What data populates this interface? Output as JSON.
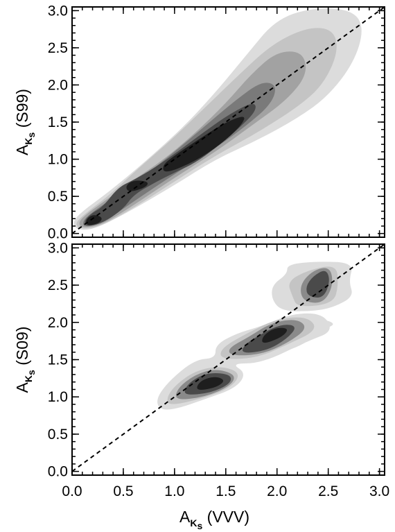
{
  "chart_data": [
    {
      "type": "contour",
      "panel": "top",
      "ylabel": {
        "main": "A",
        "subscript": "K",
        "sub_marker": "s",
        "rest": " (S99)"
      },
      "xlim": [
        0.0,
        3.05
      ],
      "ylim": [
        -0.05,
        3.05
      ],
      "xticks": [
        0.0,
        0.5,
        1.0,
        1.5,
        2.0,
        2.5,
        3.0
      ],
      "yticks": [
        0.0,
        0.5,
        1.0,
        1.5,
        2.0,
        2.5,
        3.0
      ],
      "ytick_labels": [
        "0.0",
        "0.5",
        "1.0",
        "1.5",
        "2.0",
        "2.5",
        "3.0"
      ],
      "reference_line": {
        "style": "dashed",
        "relation": "y = x"
      },
      "density_levels": [
        {
          "shade": "#dcdcdc",
          "points": [
            [
              0.05,
              0.05
            ],
            [
              0.2,
              0.05
            ],
            [
              0.5,
              0.25
            ],
            [
              1.0,
              0.65
            ],
            [
              1.4,
              1.0
            ],
            [
              1.8,
              1.25
            ],
            [
              2.2,
              1.55
            ],
            [
              2.5,
              1.85
            ],
            [
              2.75,
              2.3
            ],
            [
              2.85,
              2.75
            ],
            [
              2.75,
              3.0
            ],
            [
              2.4,
              3.05
            ],
            [
              2.0,
              2.9
            ],
            [
              1.7,
              2.4
            ],
            [
              1.4,
              1.9
            ],
            [
              1.1,
              1.45
            ],
            [
              0.7,
              0.95
            ],
            [
              0.35,
              0.55
            ],
            [
              0.1,
              0.3
            ],
            [
              0.0,
              0.15
            ]
          ]
        },
        {
          "shade": "#c4c4c4",
          "points": [
            [
              0.07,
              0.06
            ],
            [
              0.25,
              0.08
            ],
            [
              0.55,
              0.3
            ],
            [
              1.0,
              0.7
            ],
            [
              1.4,
              1.05
            ],
            [
              1.8,
              1.35
            ],
            [
              2.2,
              1.7
            ],
            [
              2.45,
              2.0
            ],
            [
              2.6,
              2.45
            ],
            [
              2.55,
              2.75
            ],
            [
              2.3,
              2.78
            ],
            [
              1.95,
              2.55
            ],
            [
              1.6,
              2.1
            ],
            [
              1.3,
              1.7
            ],
            [
              1.0,
              1.3
            ],
            [
              0.65,
              0.88
            ],
            [
              0.35,
              0.5
            ],
            [
              0.12,
              0.26
            ],
            [
              0.03,
              0.14
            ]
          ]
        },
        {
          "shade": "#a2a2a2",
          "points": [
            [
              0.1,
              0.07
            ],
            [
              0.3,
              0.12
            ],
            [
              0.6,
              0.38
            ],
            [
              1.0,
              0.75
            ],
            [
              1.4,
              1.1
            ],
            [
              1.75,
              1.45
            ],
            [
              2.1,
              1.8
            ],
            [
              2.3,
              2.15
            ],
            [
              2.25,
              2.45
            ],
            [
              2.0,
              2.45
            ],
            [
              1.75,
              2.15
            ],
            [
              1.5,
              1.75
            ],
            [
              1.2,
              1.35
            ],
            [
              0.9,
              1.0
            ],
            [
              0.6,
              0.72
            ],
            [
              0.3,
              0.42
            ],
            [
              0.12,
              0.24
            ],
            [
              0.06,
              0.14
            ]
          ]
        },
        {
          "shade": "#7a7a7a",
          "points": [
            [
              0.12,
              0.08
            ],
            [
              0.3,
              0.14
            ],
            [
              0.6,
              0.43
            ],
            [
              1.0,
              0.8
            ],
            [
              1.4,
              1.15
            ],
            [
              1.7,
              1.45
            ],
            [
              1.95,
              1.75
            ],
            [
              2.0,
              2.0
            ],
            [
              1.85,
              2.05
            ],
            [
              1.6,
              1.8
            ],
            [
              1.3,
              1.45
            ],
            [
              1.0,
              1.1
            ],
            [
              0.7,
              0.77
            ],
            [
              0.4,
              0.48
            ],
            [
              0.18,
              0.27
            ],
            [
              0.1,
              0.16
            ]
          ]
        },
        {
          "shade": "#4a4a4a",
          "points": [
            [
              0.13,
              0.09
            ],
            [
              0.3,
              0.14
            ],
            [
              0.5,
              0.33
            ],
            [
              0.6,
              0.52
            ],
            [
              0.8,
              0.68
            ],
            [
              1.0,
              0.82
            ],
            [
              1.2,
              0.95
            ],
            [
              1.4,
              1.15
            ],
            [
              1.6,
              1.38
            ],
            [
              1.8,
              1.65
            ],
            [
              1.78,
              1.78
            ],
            [
              1.55,
              1.62
            ],
            [
              1.3,
              1.38
            ],
            [
              1.05,
              1.12
            ],
            [
              0.8,
              0.88
            ],
            [
              0.6,
              0.72
            ],
            [
              0.45,
              0.62
            ],
            [
              0.3,
              0.36
            ],
            [
              0.2,
              0.28
            ],
            [
              0.12,
              0.18
            ]
          ]
        },
        {
          "shade": "#1e1e1e",
          "points": [
            [
              0.15,
              0.1
            ],
            [
              0.27,
              0.14
            ],
            [
              0.3,
              0.22
            ],
            [
              0.2,
              0.26
            ],
            [
              0.13,
              0.18
            ]
          ]
        },
        {
          "shade": "#1e1e1e",
          "points": [
            [
              0.55,
              0.55
            ],
            [
              0.72,
              0.62
            ],
            [
              0.75,
              0.7
            ],
            [
              0.6,
              0.72
            ],
            [
              0.52,
              0.64
            ]
          ]
        },
        {
          "shade": "#1e1e1e",
          "points": [
            [
              0.9,
              0.8
            ],
            [
              1.2,
              0.97
            ],
            [
              1.45,
              1.2
            ],
            [
              1.65,
              1.45
            ],
            [
              1.7,
              1.6
            ],
            [
              1.5,
              1.5
            ],
            [
              1.25,
              1.28
            ],
            [
              1.0,
              1.05
            ],
            [
              0.88,
              0.92
            ]
          ]
        }
      ]
    },
    {
      "type": "contour",
      "panel": "bottom",
      "ylabel": {
        "main": "A",
        "subscript": "K",
        "sub_marker": "s",
        "rest": " (S09)"
      },
      "xlabel": {
        "main": "A",
        "subscript": "K",
        "sub_marker": "s",
        "rest": " (VVV)"
      },
      "xlim": [
        0.0,
        3.05
      ],
      "ylim": [
        -0.05,
        3.05
      ],
      "xticks": [
        0.0,
        0.5,
        1.0,
        1.5,
        2.0,
        2.5,
        3.0
      ],
      "xtick_labels": [
        "0.0",
        "0.5",
        "1.0",
        "1.5",
        "2.0",
        "2.5",
        "3.0"
      ],
      "yticks": [
        0.0,
        0.5,
        1.0,
        1.5,
        2.0,
        2.5,
        3.0
      ],
      "ytick_labels": [
        "0.0",
        "0.5",
        "1.0",
        "1.5",
        "2.0",
        "2.5",
        "3.0"
      ],
      "reference_line": {
        "style": "dashed",
        "relation": "y = x"
      },
      "density_levels": [
        {
          "shade": "#dcdcdc",
          "points": [
            [
              0.85,
              0.83
            ],
            [
              1.0,
              0.83
            ],
            [
              1.3,
              0.97
            ],
            [
              1.6,
              1.12
            ],
            [
              1.7,
              1.32
            ],
            [
              1.55,
              1.45
            ],
            [
              1.85,
              1.45
            ],
            [
              2.3,
              1.75
            ],
            [
              2.55,
              1.88
            ],
            [
              2.45,
              2.12
            ],
            [
              2.15,
              2.12
            ],
            [
              1.85,
              1.95
            ],
            [
              1.6,
              1.85
            ],
            [
              1.4,
              1.7
            ],
            [
              1.4,
              1.52
            ],
            [
              1.2,
              1.5
            ],
            [
              0.95,
              1.22
            ],
            [
              0.82,
              0.98
            ]
          ]
        },
        {
          "shade": "#dcdcdc",
          "points": [
            [
              1.85,
              1.55
            ],
            [
              2.2,
              1.65
            ],
            [
              2.45,
              1.9
            ],
            [
              2.6,
              2.0
            ],
            [
              2.2,
              2.1
            ],
            [
              1.75,
              1.9
            ],
            [
              1.5,
              1.7
            ],
            [
              1.6,
              1.55
            ]
          ]
        },
        {
          "shade": "#dcdcdc",
          "points": [
            [
              2.05,
              2.15
            ],
            [
              2.35,
              2.15
            ],
            [
              2.55,
              2.2
            ],
            [
              2.75,
              2.35
            ],
            [
              2.7,
              2.55
            ],
            [
              2.75,
              2.8
            ],
            [
              2.4,
              2.82
            ],
            [
              2.1,
              2.78
            ],
            [
              2.1,
              2.65
            ],
            [
              1.95,
              2.5
            ],
            [
              1.95,
              2.3
            ]
          ]
        },
        {
          "shade": "#c4c4c4",
          "points": [
            [
              0.95,
              0.88
            ],
            [
              1.25,
              0.97
            ],
            [
              1.55,
              1.12
            ],
            [
              1.65,
              1.32
            ],
            [
              1.45,
              1.42
            ],
            [
              1.2,
              1.35
            ],
            [
              1.0,
              1.15
            ],
            [
              0.92,
              0.98
            ]
          ]
        },
        {
          "shade": "#c4c4c4",
          "points": [
            [
              1.45,
              1.5
            ],
            [
              1.8,
              1.52
            ],
            [
              2.1,
              1.7
            ],
            [
              2.4,
              1.9
            ],
            [
              2.3,
              2.08
            ],
            [
              2.0,
              2.05
            ],
            [
              1.7,
              1.85
            ],
            [
              1.45,
              1.65
            ]
          ]
        },
        {
          "shade": "#c4c4c4",
          "points": [
            [
              2.2,
              2.2
            ],
            [
              2.55,
              2.25
            ],
            [
              2.6,
              2.5
            ],
            [
              2.58,
              2.78
            ],
            [
              2.3,
              2.7
            ],
            [
              2.1,
              2.55
            ],
            [
              2.15,
              2.35
            ]
          ]
        },
        {
          "shade": "#8a8a8a",
          "points": [
            [
              1.0,
              0.95
            ],
            [
              1.3,
              1.0
            ],
            [
              1.55,
              1.15
            ],
            [
              1.6,
              1.3
            ],
            [
              1.4,
              1.38
            ],
            [
              1.2,
              1.3
            ],
            [
              1.03,
              1.12
            ]
          ]
        },
        {
          "shade": "#8a8a8a",
          "points": [
            [
              1.55,
              1.55
            ],
            [
              1.85,
              1.57
            ],
            [
              2.1,
              1.72
            ],
            [
              2.3,
              1.92
            ],
            [
              2.2,
              2.05
            ],
            [
              1.95,
              2.0
            ],
            [
              1.72,
              1.8
            ],
            [
              1.52,
              1.65
            ]
          ]
        },
        {
          "shade": "#8a8a8a",
          "points": [
            [
              2.25,
              2.28
            ],
            [
              2.45,
              2.25
            ],
            [
              2.55,
              2.5
            ],
            [
              2.52,
              2.75
            ],
            [
              2.35,
              2.7
            ],
            [
              2.22,
              2.5
            ]
          ]
        },
        {
          "shade": "#4a4a4a",
          "points": [
            [
              1.1,
              1.02
            ],
            [
              1.35,
              1.05
            ],
            [
              1.55,
              1.18
            ],
            [
              1.55,
              1.3
            ],
            [
              1.35,
              1.33
            ],
            [
              1.2,
              1.25
            ],
            [
              1.1,
              1.12
            ]
          ]
        },
        {
          "shade": "#4a4a4a",
          "points": [
            [
              1.65,
              1.58
            ],
            [
              1.9,
              1.62
            ],
            [
              2.1,
              1.78
            ],
            [
              2.2,
              1.95
            ],
            [
              2.05,
              1.98
            ],
            [
              1.85,
              1.85
            ],
            [
              1.68,
              1.7
            ]
          ]
        },
        {
          "shade": "#4a4a4a",
          "points": [
            [
              2.3,
              2.35
            ],
            [
              2.45,
              2.32
            ],
            [
              2.52,
              2.55
            ],
            [
              2.48,
              2.72
            ],
            [
              2.35,
              2.62
            ],
            [
              2.28,
              2.48
            ]
          ]
        },
        {
          "shade": "#1e1e1e",
          "points": [
            [
              1.2,
              1.08
            ],
            [
              1.4,
              1.12
            ],
            [
              1.5,
              1.22
            ],
            [
              1.4,
              1.28
            ],
            [
              1.25,
              1.22
            ]
          ]
        },
        {
          "shade": "#1e1e1e",
          "points": [
            [
              1.85,
              1.7
            ],
            [
              2.05,
              1.8
            ],
            [
              2.12,
              1.92
            ],
            [
              1.98,
              1.93
            ],
            [
              1.86,
              1.82
            ]
          ]
        }
      ]
    }
  ]
}
